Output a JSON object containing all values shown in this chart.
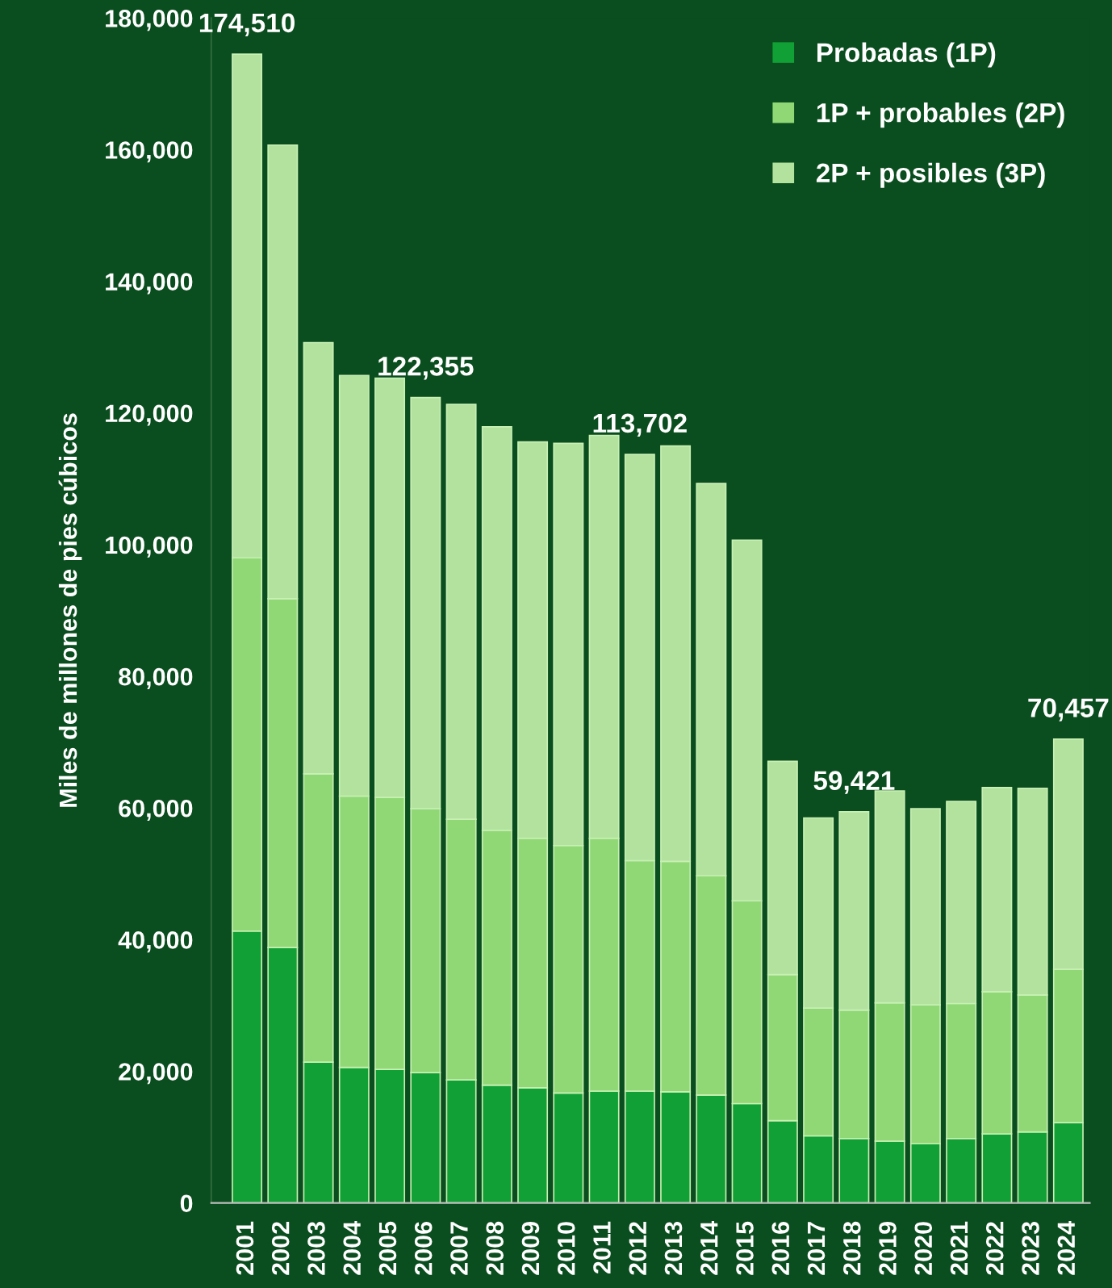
{
  "chart_data": {
    "type": "bar",
    "stacked": true,
    "ylabel": "Miles de millones de pies cúbicos",
    "categories": [
      "2001",
      "2002",
      "2003",
      "2004",
      "2005",
      "2006",
      "2007",
      "2008",
      "2009",
      "2010",
      "2011",
      "2012",
      "2013",
      "2014",
      "2015",
      "2016",
      "2017",
      "2018",
      "2019",
      "2020",
      "2021",
      "2022",
      "2023",
      "2024"
    ],
    "series": [
      {
        "name": "Probadas (1P)",
        "color": "#10a035",
        "values": [
          41300,
          38800,
          21400,
          20600,
          20300,
          19800,
          18700,
          17900,
          17500,
          16700,
          17000,
          17000,
          16900,
          16400,
          15100,
          12500,
          10200,
          9800,
          9400,
          9000,
          9800,
          10500,
          10800,
          12200
        ]
      },
      {
        "name": "1P + probables (2P)",
        "color": "#8fd875",
        "values": [
          56700,
          53000,
          43800,
          41200,
          41300,
          40100,
          39600,
          38700,
          37900,
          37600,
          38400,
          35000,
          35000,
          33300,
          30800,
          22200,
          19400,
          19500,
          21000,
          21100,
          20500,
          21600,
          20800,
          23300
        ]
      },
      {
        "name": "2P + posibles (3P)",
        "color": "#b3e29f",
        "values": [
          76510,
          68900,
          65500,
          63900,
          63700,
          62455,
          63000,
          61300,
          60200,
          61100,
          61200,
          61702,
          63100,
          59600,
          54800,
          32400,
          28900,
          30121,
          32200,
          29800,
          30700,
          31000,
          31400,
          34957
        ]
      }
    ],
    "totals": [
      "174,510",
      null,
      null,
      null,
      null,
      "122,355",
      null,
      null,
      null,
      null,
      null,
      "113,702",
      null,
      null,
      null,
      null,
      null,
      "59,421",
      null,
      null,
      null,
      null,
      null,
      "70,457"
    ],
    "ylim": [
      0,
      180000
    ],
    "yticks": [
      {
        "value": 0,
        "label": "0"
      },
      {
        "value": 20000,
        "label": "20,000"
      },
      {
        "value": 40000,
        "label": "40,000"
      },
      {
        "value": 60000,
        "label": "60,000"
      },
      {
        "value": 80000,
        "label": "80,000"
      },
      {
        "value": 100000,
        "label": "100,000"
      },
      {
        "value": 120000,
        "label": "120,000"
      },
      {
        "value": 140000,
        "label": "140,000"
      },
      {
        "value": 160000,
        "label": "160,000"
      },
      {
        "value": 180000,
        "label": "180,000"
      }
    ],
    "grid": false,
    "legend": "top right"
  }
}
